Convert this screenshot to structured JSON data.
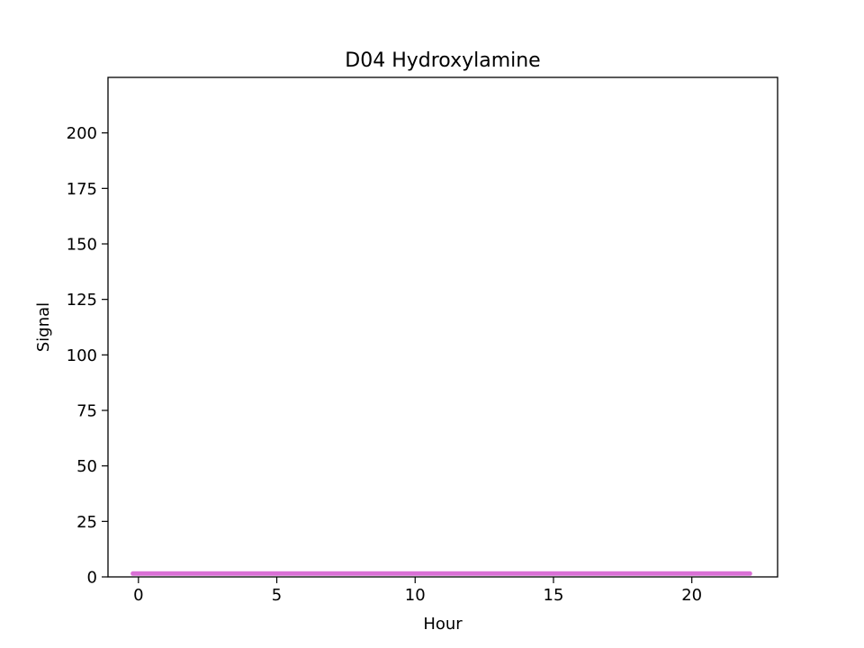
{
  "chart_data": {
    "type": "line",
    "title": "D04 Hydroxylamine",
    "xlabel": "Hour",
    "ylabel": "Signal",
    "xlim": [
      -1.1,
      23.1
    ],
    "ylim": [
      0,
      225
    ],
    "x_ticks": [
      0,
      5,
      10,
      15,
      20
    ],
    "y_ticks": [
      0,
      25,
      50,
      75,
      100,
      125,
      150,
      175,
      200
    ],
    "grid": false,
    "legend": "none",
    "series": [
      {
        "color": "#da70d6",
        "x": [
          -0.2,
          2,
          4,
          6,
          8,
          10,
          12,
          14,
          16,
          18,
          20,
          22.1
        ],
        "y": [
          1.5,
          1.5,
          1.5,
          1.5,
          1.5,
          1.5,
          1.5,
          1.5,
          1.5,
          1.5,
          1.5,
          1.5
        ]
      }
    ]
  }
}
